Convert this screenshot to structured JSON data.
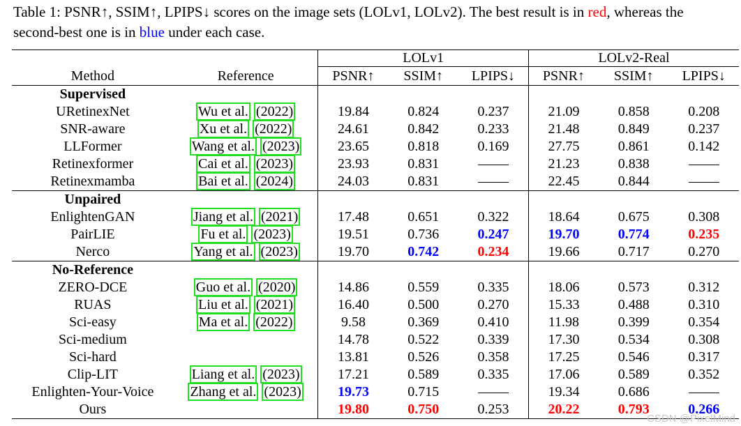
{
  "caption": {
    "pre": "Table 1: PSNR↑, SSIM↑, LPIPS↓ scores on the image sets (LOLv1, LOLv2). The best result is in",
    "red_word": "red",
    "mid": ", whereas the second-best one is in ",
    "blue_word": "blue",
    "post": " under each case."
  },
  "colors": {
    "best": "#ff0000",
    "second": "#0000ff",
    "ref_box": "#22dd22"
  },
  "header": {
    "group1": "LOLv1",
    "group2": "LOLv2-Real",
    "method": "Method",
    "reference": "Reference",
    "metrics": [
      "PSNR↑",
      "SSIM↑",
      "LPIPS↓",
      "PSNR↑",
      "SSIM↑",
      "LPIPS↓"
    ]
  },
  "groups": [
    {
      "label": "Supervised",
      "rows": [
        {
          "method": "URetinexNet",
          "ref_author": "Wu et al.",
          "ref_year": "(2022)",
          "values": [
            "19.84",
            "0.824",
            "0.237",
            "21.09",
            "0.858",
            "0.208"
          ],
          "marks": [
            "",
            "",
            "",
            "",
            "",
            ""
          ]
        },
        {
          "method": "SNR-aware",
          "ref_author": "Xu et al.",
          "ref_year": "(2022)",
          "values": [
            "24.61",
            "0.842",
            "0.233",
            "21.48",
            "0.849",
            "0.237"
          ],
          "marks": [
            "",
            "",
            "",
            "",
            "",
            ""
          ]
        },
        {
          "method": "LLFormer",
          "ref_author": "Wang et al.",
          "ref_year": "(2023)",
          "values": [
            "23.65",
            "0.818",
            "0.169",
            "27.75",
            "0.861",
            "0.142"
          ],
          "marks": [
            "",
            "",
            "",
            "",
            "",
            ""
          ]
        },
        {
          "method": "Retinexformer",
          "ref_author": "Cai et al.",
          "ref_year": "(2023)",
          "values": [
            "23.93",
            "0.831",
            "—",
            "21.23",
            "0.838",
            "—"
          ],
          "marks": [
            "",
            "",
            "",
            "",
            "",
            ""
          ]
        },
        {
          "method": "Retinexmamba",
          "ref_author": "Bai et al.",
          "ref_year": "(2024)",
          "values": [
            "24.03",
            "0.831",
            "—",
            "22.45",
            "0.844",
            "—"
          ],
          "marks": [
            "",
            "",
            "",
            "",
            "",
            ""
          ]
        }
      ]
    },
    {
      "label": "Unpaired",
      "rows": [
        {
          "method": "EnlightenGAN",
          "ref_author": "Jiang et al.",
          "ref_year": "(2021)",
          "values": [
            "17.48",
            "0.651",
            "0.322",
            "18.64",
            "0.675",
            "0.308"
          ],
          "marks": [
            "",
            "",
            "",
            "",
            "",
            ""
          ]
        },
        {
          "method": "PairLIE",
          "ref_author": "Fu et al.",
          "ref_year": "(2023)",
          "values": [
            "19.51",
            "0.736",
            "0.247",
            "19.70",
            "0.774",
            "0.235"
          ],
          "marks": [
            "",
            "",
            "second",
            "second",
            "second",
            "best"
          ]
        },
        {
          "method": "Nerco",
          "ref_author": "Yang et al.",
          "ref_year": "(2023)",
          "values": [
            "19.70",
            "0.742",
            "0.234",
            "19.66",
            "0.717",
            "0.270"
          ],
          "marks": [
            "",
            "second",
            "best",
            "",
            "",
            ""
          ]
        }
      ]
    },
    {
      "label": "No-Reference",
      "rows": [
        {
          "method": "ZERO-DCE",
          "ref_author": "Guo et al.",
          "ref_year": "(2020)",
          "values": [
            "14.86",
            "0.559",
            "0.335",
            "18.06",
            "0.573",
            "0.312"
          ],
          "marks": [
            "",
            "",
            "",
            "",
            "",
            ""
          ]
        },
        {
          "method": "RUAS",
          "ref_author": "Liu et al.",
          "ref_year": "(2021)",
          "values": [
            "16.40",
            "0.500",
            "0.270",
            "15.33",
            "0.488",
            "0.310"
          ],
          "marks": [
            "",
            "",
            "",
            "",
            "",
            ""
          ]
        },
        {
          "method": "Sci-easy",
          "ref_author": "Ma et al.",
          "ref_year": "(2022)",
          "values": [
            "9.58",
            "0.369",
            "0.410",
            "11.98",
            "0.399",
            "0.354"
          ],
          "marks": [
            "",
            "",
            "",
            "",
            "",
            ""
          ]
        },
        {
          "method": "Sci-medium",
          "ref_author": "",
          "ref_year": "",
          "values": [
            "14.78",
            "0.522",
            "0.339",
            "17.30",
            "0.534",
            "0.308"
          ],
          "marks": [
            "",
            "",
            "",
            "",
            "",
            ""
          ]
        },
        {
          "method": "Sci-hard",
          "ref_author": "",
          "ref_year": "",
          "values": [
            "13.81",
            "0.526",
            "0.358",
            "17.25",
            "0.546",
            "0.317"
          ],
          "marks": [
            "",
            "",
            "",
            "",
            "",
            ""
          ]
        },
        {
          "method": "Clip-LIT",
          "ref_author": "Liang et al.",
          "ref_year": "(2023)",
          "values": [
            "17.21",
            "0.589",
            "0.335",
            "17.06",
            "0.589",
            "0.352"
          ],
          "marks": [
            "",
            "",
            "",
            "",
            "",
            ""
          ]
        },
        {
          "method": "Enlighten-Your-Voice",
          "ref_author": "Zhang et al.",
          "ref_year": "(2023)",
          "values": [
            "19.73",
            "0.715",
            "—",
            "19.34",
            "0.686",
            "—"
          ],
          "marks": [
            "second",
            "",
            "",
            "",
            "",
            ""
          ]
        },
        {
          "method": "Ours",
          "ref_author": "",
          "ref_year": "",
          "values": [
            "19.80",
            "0.750",
            "0.253",
            "20.22",
            "0.793",
            "0.266"
          ],
          "marks": [
            "best",
            "best",
            "",
            "best",
            "best",
            "second"
          ]
        }
      ]
    }
  ],
  "watermark": "CSDN @PixelMind"
}
